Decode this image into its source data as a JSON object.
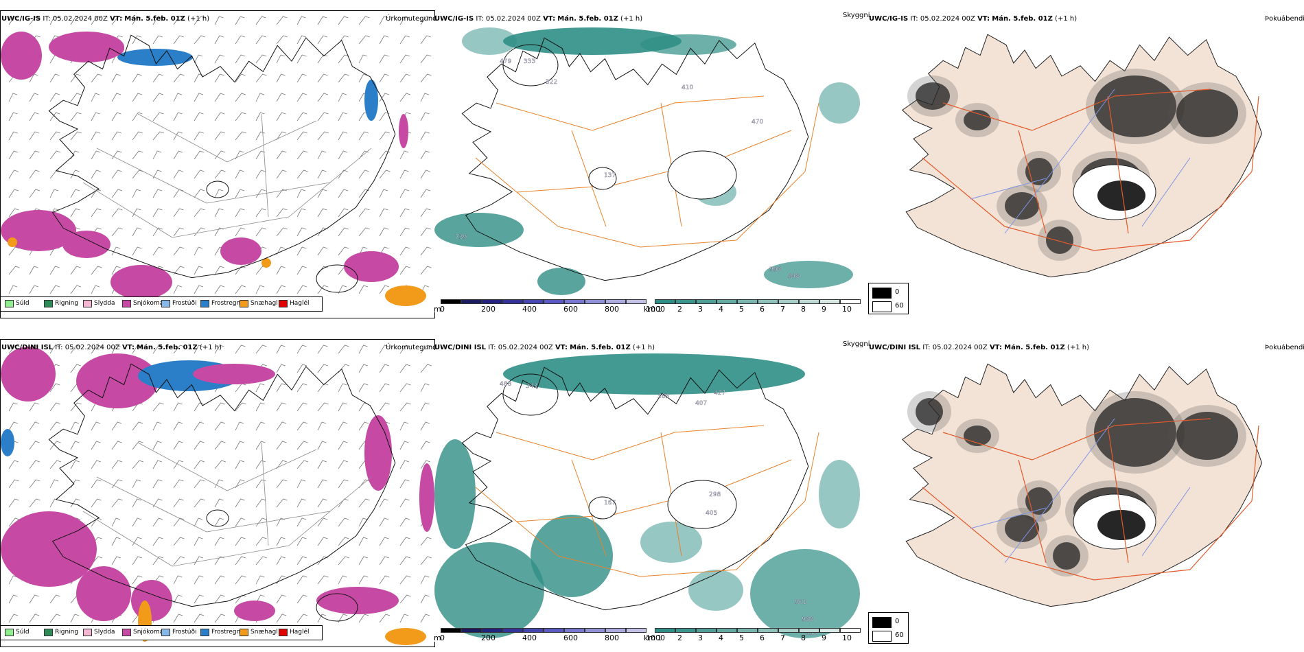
{
  "panels": [
    {
      "id": "uwc-ig-is",
      "precip": {
        "model": "UWC/IG-IS",
        "it_label": "IT:",
        "it": "05.02.2024 00Z",
        "vt_label": "VT:",
        "vt": "Mán. 5.feb. 01Z",
        "lead": "(+1 h)",
        "right": "Úrkomutegund"
      },
      "vis": {
        "model": "UWC/IG-IS",
        "it_label": "IT:",
        "it": "05.02.2024 00Z",
        "vt_label": "VT:",
        "vt": "Mán. 5.feb. 01Z",
        "lead": "(+1 h)",
        "right": "Skyggni"
      },
      "fog": {
        "model": "UWC/IG-IS",
        "it_label": "IT:",
        "it": "05.02.2024 00Z",
        "vt_label": "VT:",
        "vt": "Mán. 5.feb. 01Z",
        "lead": "(+1 h)",
        "right": "Þokuábendi"
      },
      "labels": [
        "479",
        "333",
        "322",
        "410",
        "137",
        "998",
        "948",
        "470",
        "739"
      ]
    },
    {
      "id": "uwc-dini-isl",
      "precip": {
        "model": "UWC/DINI ISL",
        "it_label": "IT:",
        "it": "05.02.2024 00Z",
        "vt_label": "VT:",
        "vt": "Mán. 5.feb. 01Z",
        "lead": "(+1 h)",
        "right": "Úrkomutegund"
      },
      "vis": {
        "model": "UWC/DINI ISL",
        "it_label": "IT:",
        "it": "05.02.2024 00Z",
        "vt_label": "VT:",
        "vt": "Mán. 5.feb. 01Z",
        "lead": "(+1 h)",
        "right": "Skyggni"
      },
      "fog": {
        "model": "UWC/DINI ISL",
        "it_label": "IT:",
        "it": "05.02.2024 00Z",
        "vt_label": "VT:",
        "vt": "Mán. 5.feb. 01Z",
        "lead": "(+1 h)",
        "right": "Þokuábendi"
      },
      "labels": [
        "488",
        "343",
        "383",
        "407",
        "427",
        "167",
        "298",
        "405",
        "901",
        "988",
        "958"
      ]
    }
  ],
  "precip_legend": [
    {
      "label": "Súld",
      "color": "#90ee90"
    },
    {
      "label": "Rigning",
      "color": "#2e8b57"
    },
    {
      "label": "Slydda",
      "color": "#f4b6d2"
    },
    {
      "label": "Snjókoma",
      "color": "#c64aa4"
    },
    {
      "label": "Frostúði",
      "color": "#87b8e8"
    },
    {
      "label": "Frostregn",
      "color": "#2b7fc8"
    },
    {
      "label": "Snæhagl",
      "color": "#f29a1a"
    },
    {
      "label": "Haglél",
      "color": "#e00000"
    }
  ],
  "vis_legend": {
    "m_unit": "m",
    "m_ticks": [
      "0",
      "200",
      "400",
      "600",
      "800",
      "1000"
    ],
    "km_unit": "km",
    "km_ticks": [
      "1",
      "2",
      "3",
      "4",
      "5",
      "6",
      "7",
      "8",
      "9",
      "10"
    ]
  },
  "fog_legend": {
    "max": "0",
    "min": "60"
  },
  "colors": {
    "snow": "#c64aa4",
    "freezing_rain": "#2b7fc8",
    "ice_pellets": "#f29a1a",
    "teal": "#2f8f86",
    "road": "#e8822a",
    "fog_land": "#f3e3d6",
    "fog_road": "#e25a2a",
    "fog_river": "#7f95e6"
  }
}
